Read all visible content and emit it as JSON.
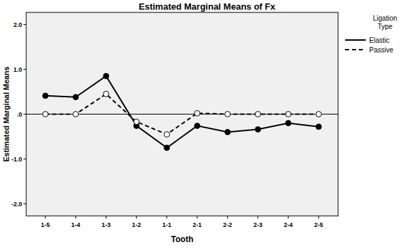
{
  "chart_data": {
    "type": "line",
    "title": "Estimated Marginal Means of Fx",
    "x_label": "Tooth",
    "y_label": "Estimated Marginal Means",
    "legend_title": "Ligation Type",
    "categories": [
      "1-5",
      "1-4",
      "1-3",
      "1-2",
      "1-1",
      "2-1",
      "2-2",
      "2-3",
      "2-4",
      "2-5"
    ],
    "series": [
      {
        "name": "Elastic",
        "color": "#000000",
        "marker": "circle",
        "line_style": "solid",
        "values": [
          0.41,
          0.38,
          0.85,
          -0.26,
          -0.75,
          -0.26,
          -0.4,
          -0.34,
          -0.2,
          -0.28
        ]
      },
      {
        "name": "Passive",
        "color": "#000000",
        "marker": "open_circle",
        "line_style": "dashed",
        "values": [
          0,
          0,
          0.45,
          -0.17,
          -0.45,
          0.02,
          0,
          0,
          0,
          0
        ]
      }
    ],
    "ylim": [
      -2.27,
      2.27
    ],
    "yticks": [
      {
        "value": -2,
        "label": "-2.0"
      },
      {
        "value": -1,
        "label": "-1.0"
      },
      {
        "value": 0,
        "label": ".0"
      },
      {
        "value": 1,
        "label": "1.0"
      },
      {
        "value": 2,
        "label": "2.0"
      }
    ],
    "grid": false,
    "legend": "right"
  }
}
